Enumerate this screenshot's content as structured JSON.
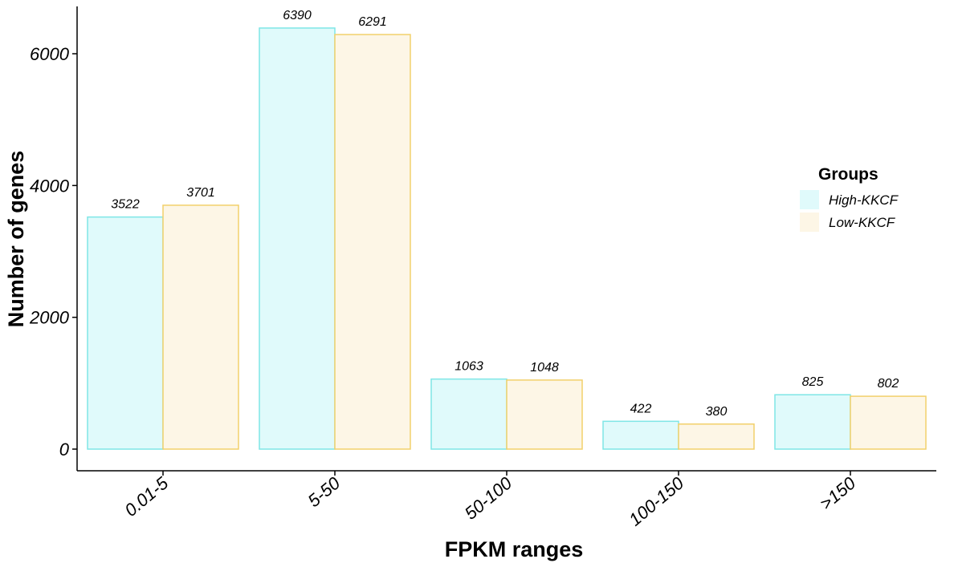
{
  "chart_data": {
    "type": "bar",
    "xlabel": "FPKM ranges",
    "ylabel": "Number of genes",
    "categories": [
      "0.01-5",
      "5-50",
      "50-100",
      "100-150",
      ">150"
    ],
    "series": [
      {
        "name": "High-KKCF",
        "values": [
          3522,
          6390,
          1063,
          422,
          825
        ],
        "fill": "#e0fafb",
        "stroke": "#7fe6e6"
      },
      {
        "name": "Low-KKCF",
        "values": [
          3701,
          6291,
          1048,
          380,
          802
        ],
        "fill": "#fdf6e6",
        "stroke": "#f2d06b"
      }
    ],
    "yticks": [
      0,
      2000,
      4000,
      6000
    ],
    "ylim": [
      0,
      6700
    ],
    "legend": {
      "title": "Groups",
      "placement": "right"
    },
    "grid": false
  }
}
